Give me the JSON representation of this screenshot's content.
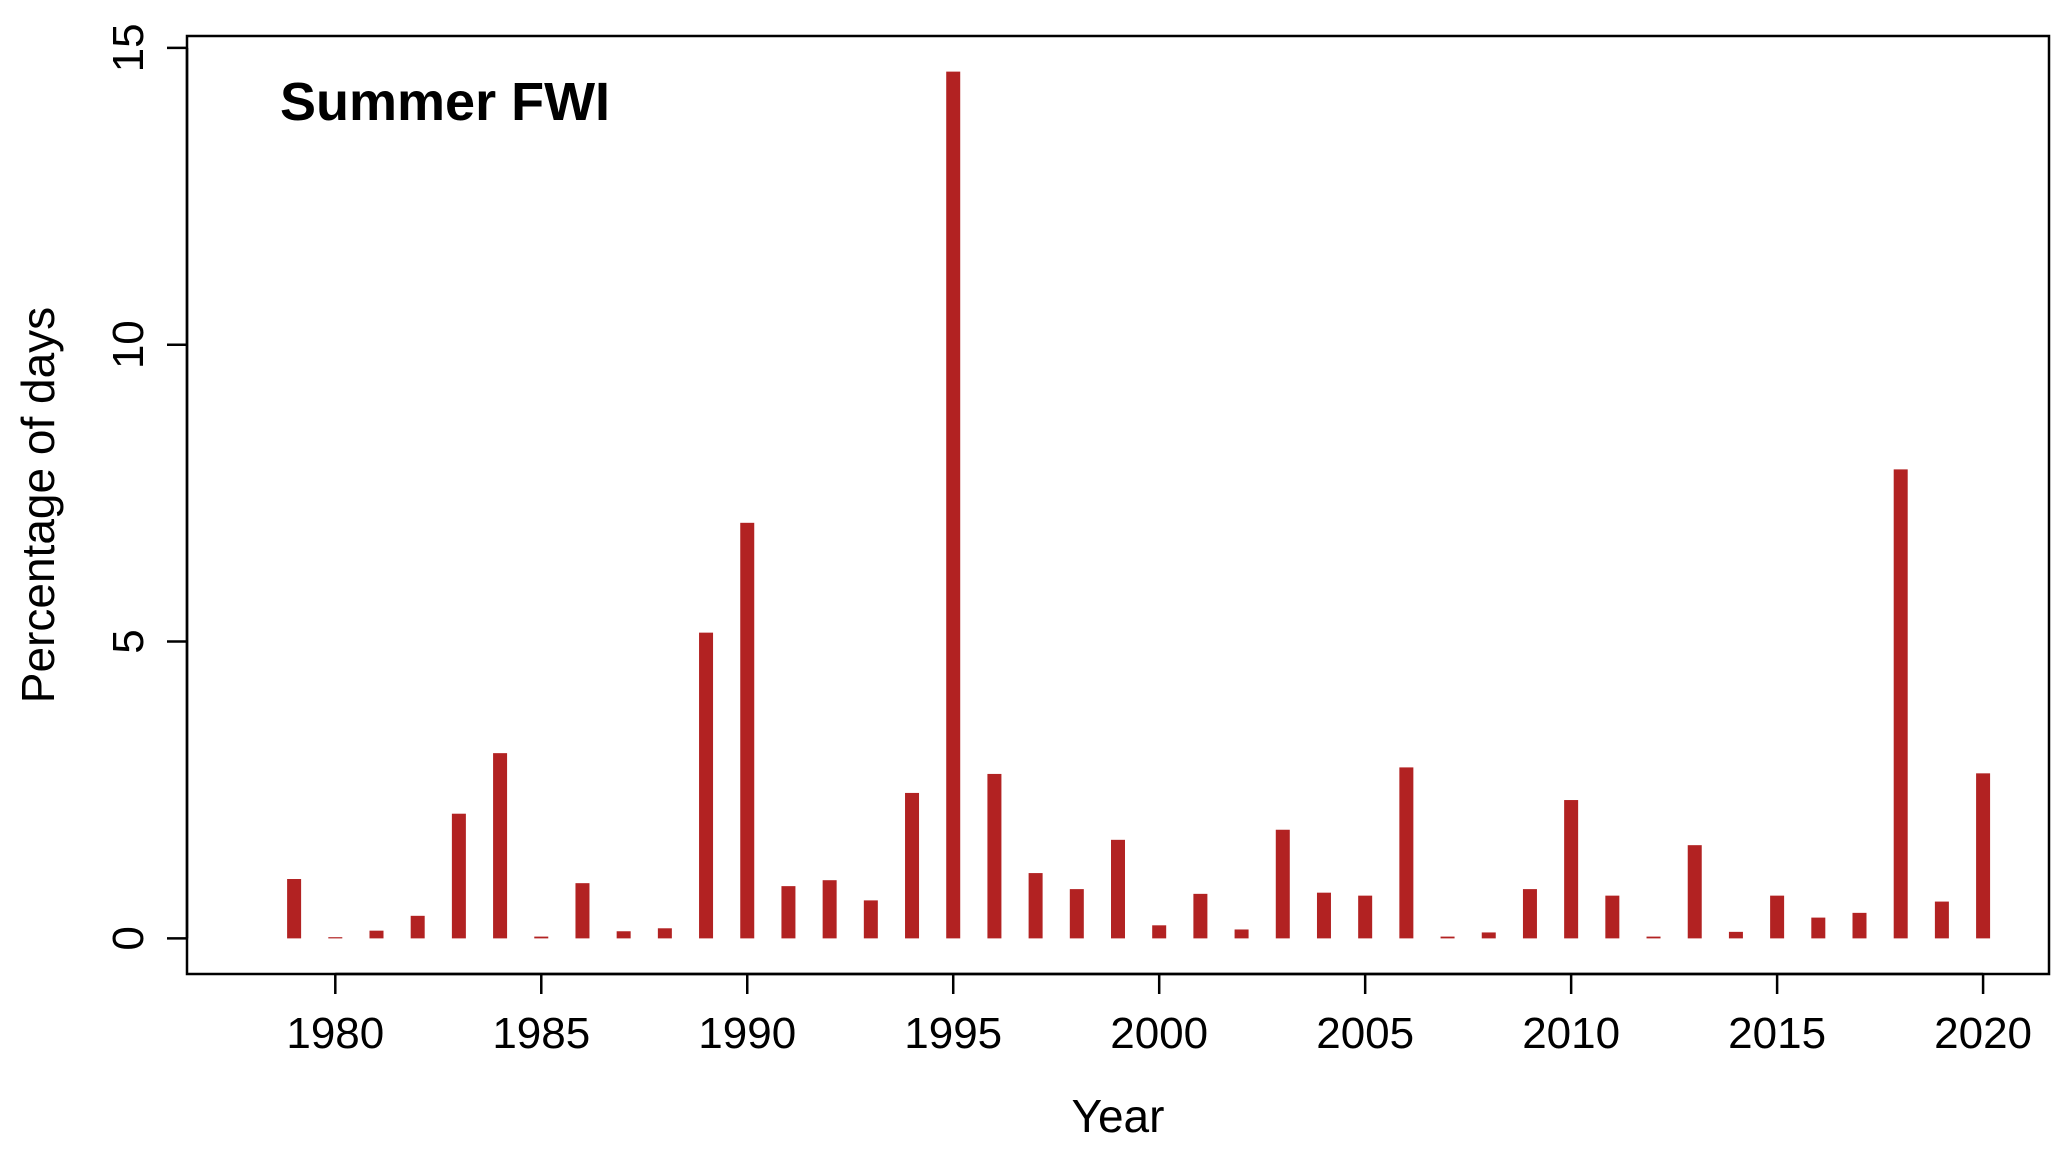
{
  "chart_data": {
    "type": "bar",
    "title": "Summer FWI",
    "xlabel": "Year",
    "ylabel": "Percentage of days",
    "xlim": [
      1976.4,
      2021.6
    ],
    "ylim": [
      -0.6,
      15.2
    ],
    "xticks": [
      1980,
      1985,
      1990,
      1995,
      2000,
      2005,
      2010,
      2015,
      2020
    ],
    "yticks": [
      0,
      5,
      10,
      15
    ],
    "grid": false,
    "legend": "none",
    "bar_color": "#B22222",
    "x": [
      1979,
      1980,
      1981,
      1982,
      1983,
      1984,
      1985,
      1986,
      1987,
      1988,
      1989,
      1990,
      1991,
      1992,
      1993,
      1994,
      1995,
      1996,
      1997,
      1998,
      1999,
      2000,
      2001,
      2002,
      2003,
      2004,
      2005,
      2006,
      2007,
      2008,
      2009,
      2010,
      2011,
      2012,
      2013,
      2014,
      2015,
      2016,
      2017,
      2018,
      2019,
      2020
    ],
    "values": [
      1.0,
      0.02,
      0.13,
      0.38,
      2.1,
      3.12,
      0.03,
      0.93,
      0.12,
      0.17,
      5.15,
      7.0,
      0.88,
      0.98,
      0.64,
      2.45,
      14.6,
      2.77,
      1.1,
      0.83,
      1.66,
      0.22,
      0.75,
      0.15,
      1.83,
      0.77,
      0.72,
      2.88,
      0.03,
      0.1,
      0.83,
      2.33,
      0.72,
      0.03,
      1.57,
      0.11,
      0.72,
      0.35,
      0.43,
      7.9,
      0.62,
      2.78
    ]
  }
}
